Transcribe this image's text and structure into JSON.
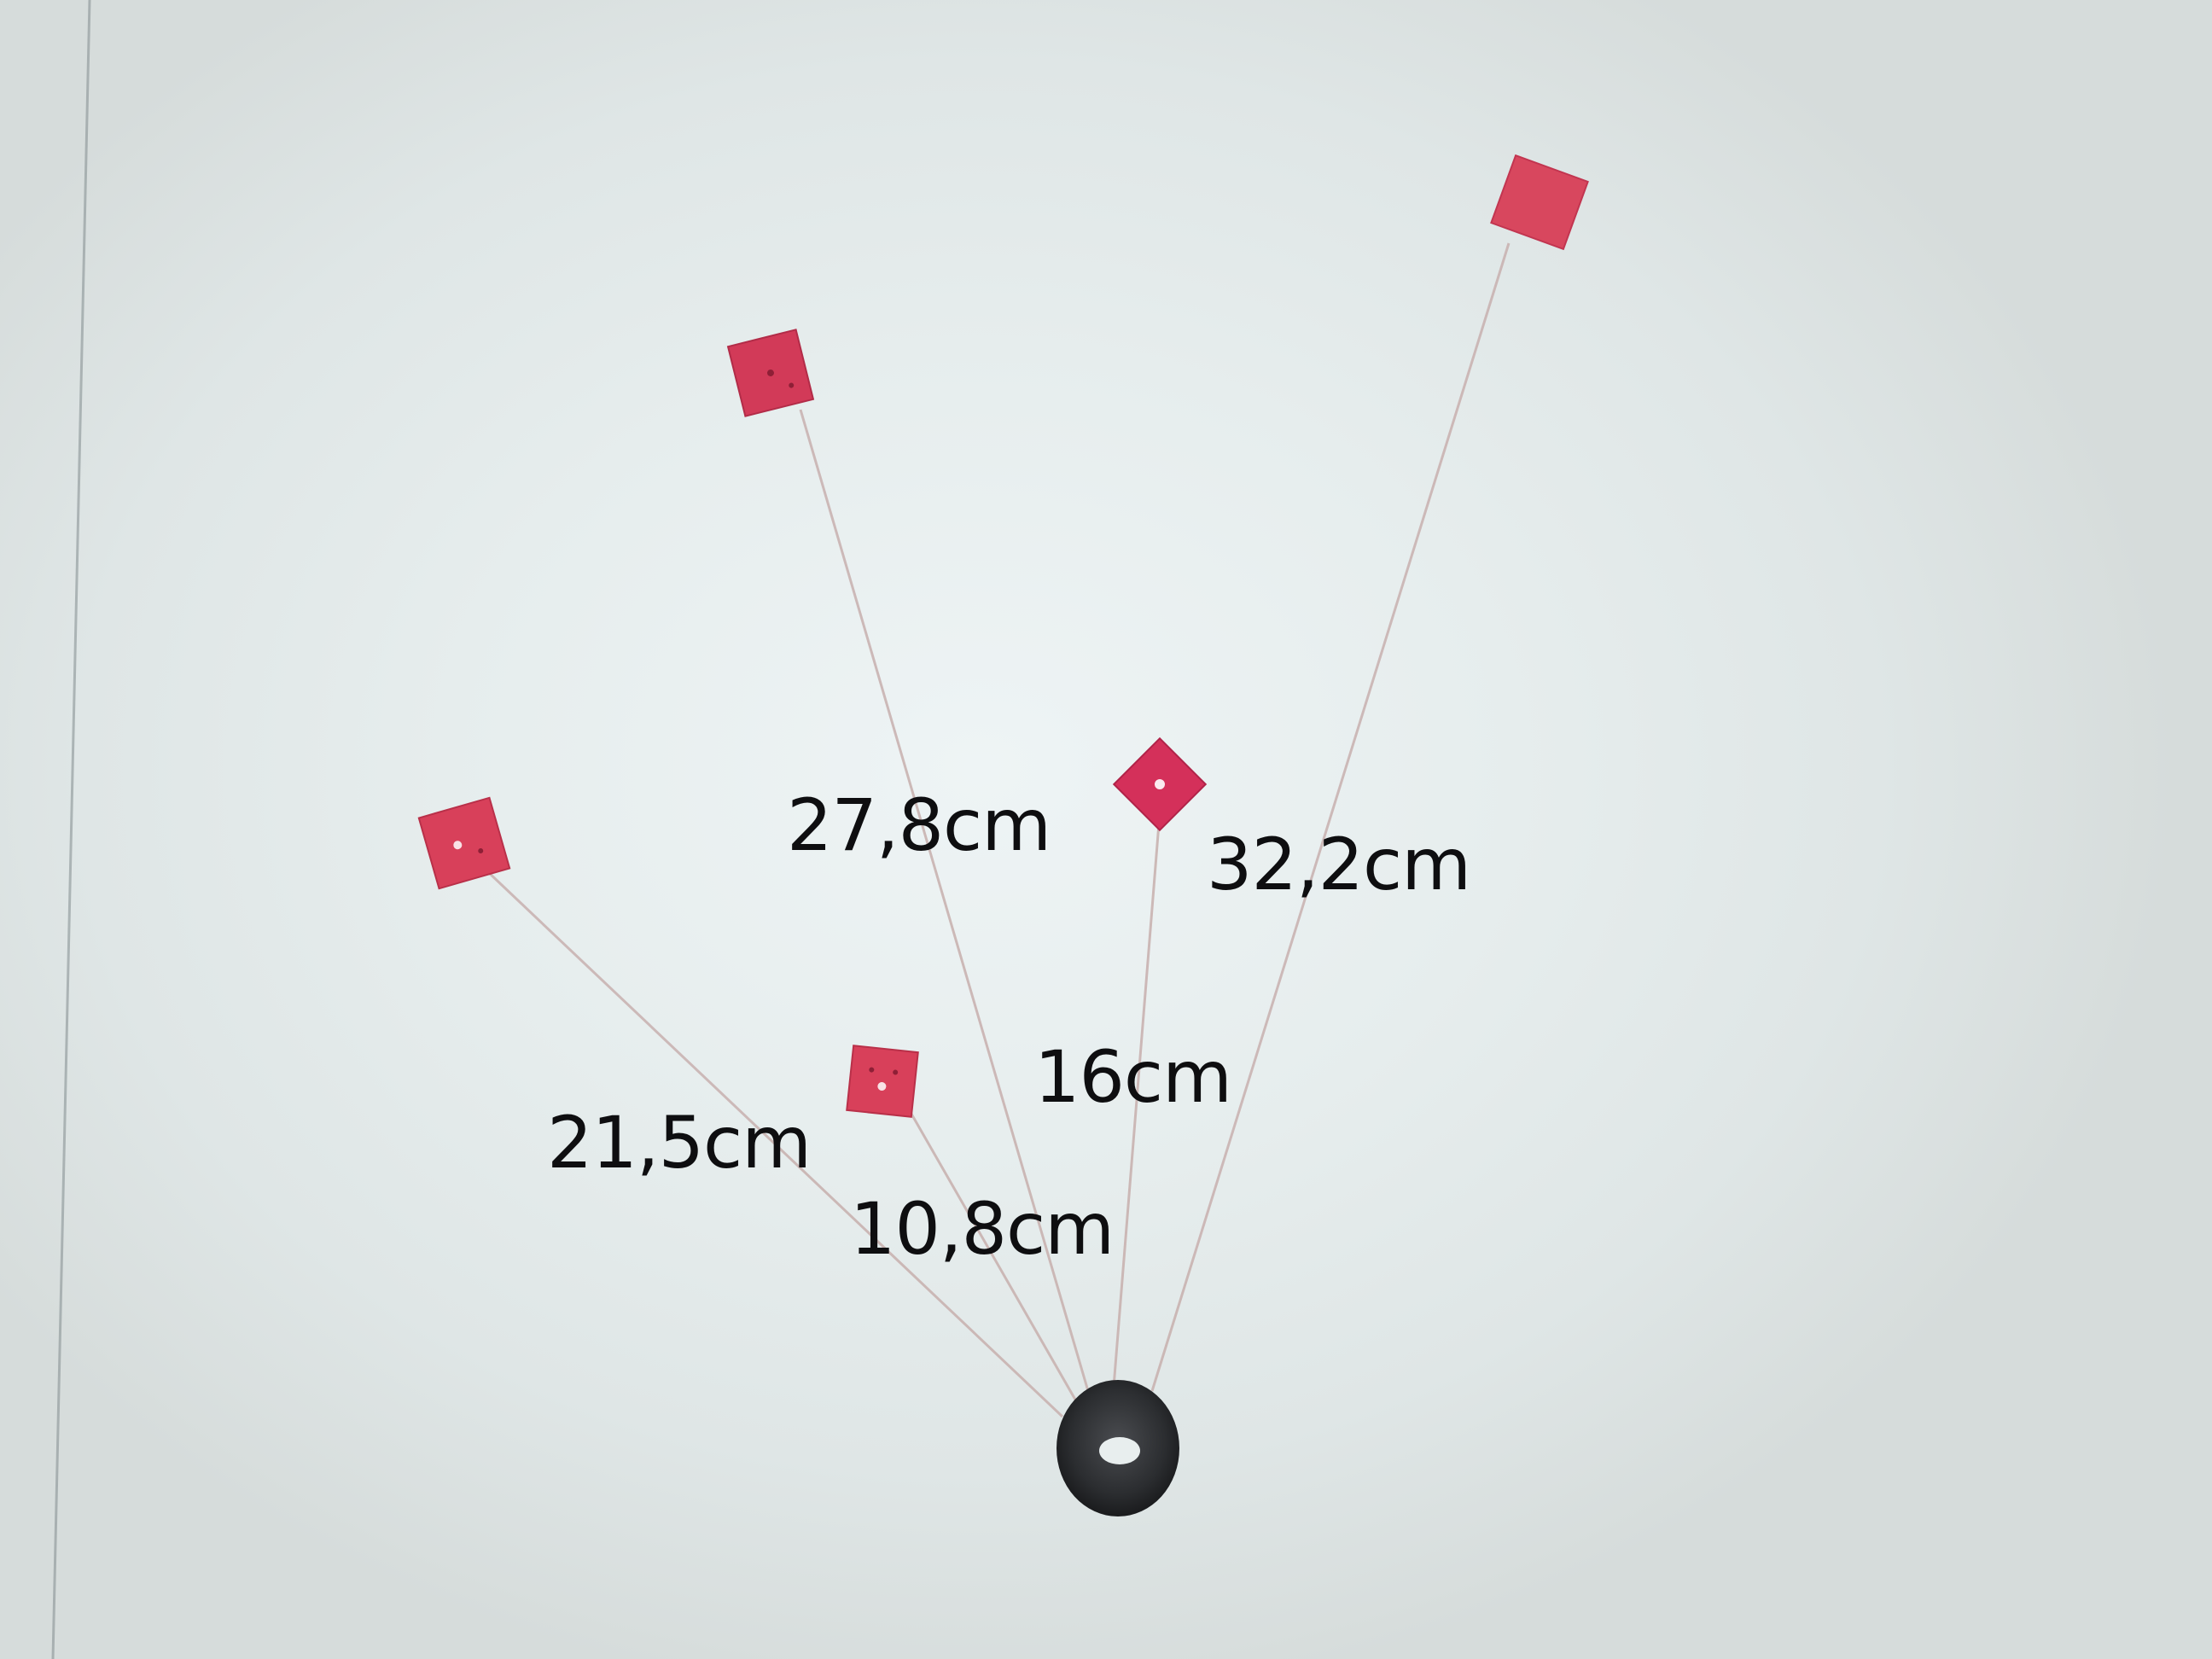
{
  "photo": {
    "measurements": [
      {
        "id": "m1",
        "label": "21,5cm"
      },
      {
        "id": "m2",
        "label": "10,8cm"
      },
      {
        "id": "m3",
        "label": "27,8cm"
      },
      {
        "id": "m4",
        "label": "16cm"
      },
      {
        "id": "m5",
        "label": "32,2cm"
      }
    ]
  },
  "colors": {
    "background": "#e4eaec",
    "marker": "#d8475e",
    "thread": "#c9b3b1",
    "text": "#0e0e10",
    "base": "#2b2d30"
  }
}
